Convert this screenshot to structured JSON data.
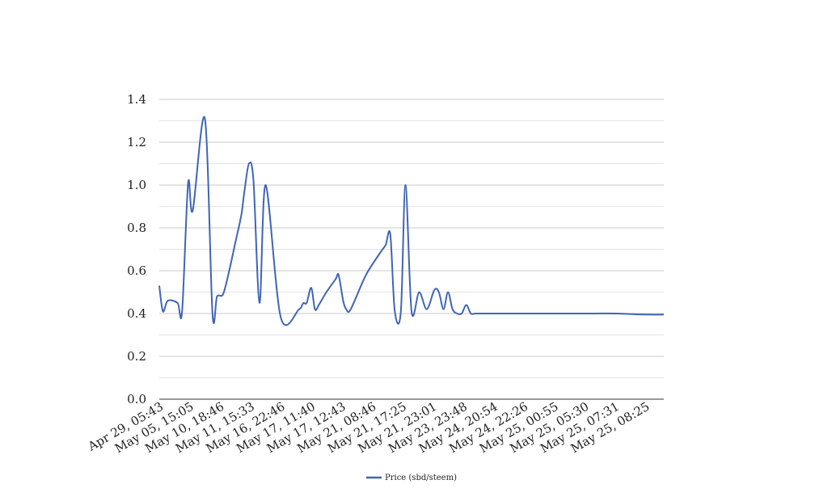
{
  "chart_data": {
    "type": "line",
    "title": "",
    "xlabel": "",
    "ylabel": "",
    "ylim": [
      0,
      1.4
    ],
    "yticks": [
      "0.0",
      "0.2",
      "0.4",
      "0.6",
      "0.8",
      "1.0",
      "1.2",
      "1.4"
    ],
    "ytick_values": [
      0,
      0.2,
      0.4,
      0.6,
      0.8,
      1.0,
      1.2,
      1.4
    ],
    "grid": true,
    "legend_position": "bottom-center",
    "colors": {
      "line": "#3f65b6",
      "grid": "#c8c8c8",
      "minor_grid": "#e4e4e4",
      "axis": "#333333"
    },
    "categories": [
      "Apr 29, 05:43",
      "May 05, 15:05",
      "May 10, 18:46",
      "May 11, 15:33",
      "May 16, 22:46",
      "May 17, 11:40",
      "May 17, 12:43",
      "May 21, 08:46",
      "May 21, 17:25",
      "May 21, 23:01",
      "May 23, 23:48",
      "May 24, 20:54",
      "May 24, 22:26",
      "May 25, 00:55",
      "May 25, 05:30",
      "May 25, 07:31",
      "May 25, 08:25"
    ],
    "series": [
      {
        "name": "Price (sbd/steem)",
        "x": [
          0,
          0.12,
          0.28,
          0.6,
          0.75,
          0.95,
          1.1,
          1.5,
          1.75,
          1.9,
          2.1,
          2.3,
          2.5,
          2.7,
          2.8,
          2.95,
          3.1,
          3.3,
          3.5,
          4.0,
          4.6,
          4.7,
          4.75,
          4.85,
          5.0,
          5.12,
          5.25,
          5.5,
          5.8,
          5.9,
          6.05,
          6.15,
          6.3,
          6.8,
          7.3,
          7.45,
          7.6,
          7.75,
          7.95,
          8.1,
          8.3,
          8.55,
          8.8,
          9.05,
          9.2,
          9.35,
          9.5,
          9.65,
          9.8,
          9.95,
          10.1,
          10.25,
          10.4,
          10.55,
          10.7,
          10.85,
          11.0,
          11.15,
          11.3,
          11.45,
          11.6,
          11.8,
          12.0,
          12.5,
          13.0,
          14.0,
          15.0,
          16.0,
          16.6
        ],
        "values": [
          0.53,
          0.41,
          0.46,
          0.45,
          0.41,
          1.01,
          0.88,
          1.31,
          0.4,
          0.48,
          0.49,
          0.6,
          0.73,
          0.86,
          0.97,
          1.1,
          1.02,
          0.45,
          1.0,
          0.38,
          0.42,
          0.44,
          0.45,
          0.45,
          0.52,
          0.42,
          0.44,
          0.5,
          0.56,
          0.58,
          0.46,
          0.42,
          0.42,
          0.58,
          0.69,
          0.72,
          0.77,
          0.41,
          0.41,
          1.0,
          0.41,
          0.5,
          0.42,
          0.51,
          0.5,
          0.42,
          0.5,
          0.42,
          0.4,
          0.4,
          0.44,
          0.4,
          0.4,
          0.4,
          0.4,
          0.4,
          0.4,
          0.4,
          0.4,
          0.4,
          0.4,
          0.4,
          0.4,
          0.4,
          0.4,
          0.4,
          0.4,
          0.395,
          0.395
        ]
      }
    ]
  }
}
